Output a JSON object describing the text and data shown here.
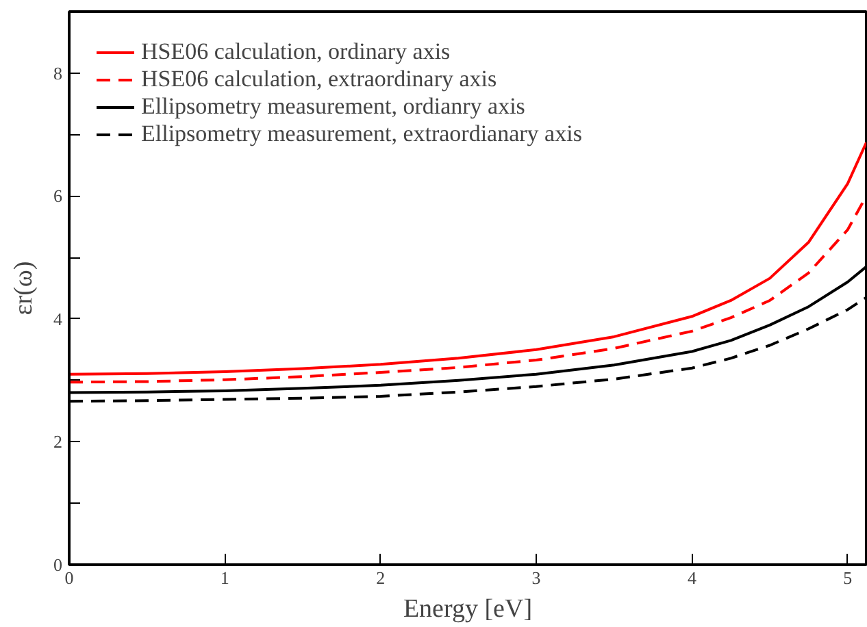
{
  "chart_data": {
    "type": "line",
    "xlabel": "Energy [eV]",
    "ylabel": "εr(ω)",
    "x": [
      0,
      0.5,
      1,
      1.5,
      2,
      2.5,
      3,
      3.5,
      4,
      4.25,
      4.5,
      4.75,
      5,
      5.12
    ],
    "xlim": [
      0,
      5.12
    ],
    "ylim": [
      0,
      9
    ],
    "xticks": [
      0,
      1,
      2,
      3,
      4,
      5
    ],
    "yticks": [
      0,
      {
        "value": 1,
        "label": null
      },
      2,
      {
        "value": 3,
        "label": null
      },
      4,
      {
        "value": 5,
        "label": null
      },
      6,
      {
        "value": 7,
        "label": null
      },
      8
    ],
    "grid": false,
    "legend": "top left",
    "marker": "none",
    "series": [
      {
        "name": "HSE06 calculation, ordinary axis",
        "color": "#ff0000",
        "line_style": "solid",
        "values": [
          3.1,
          3.11,
          3.14,
          3.19,
          3.26,
          3.36,
          3.5,
          3.71,
          4.04,
          4.3,
          4.66,
          5.25,
          6.2,
          6.87
        ]
      },
      {
        "name": "HSE06 calculation, extraordinary axis",
        "color": "#ff0000",
        "line_style": "dashed",
        "values": [
          2.97,
          2.98,
          3.01,
          3.06,
          3.13,
          3.21,
          3.33,
          3.52,
          3.8,
          4.02,
          4.3,
          4.75,
          5.45,
          6.0
        ]
      },
      {
        "name": "Ellipsometry measurement, ordianry axis",
        "color": "#000000",
        "line_style": "solid",
        "values": [
          2.8,
          2.81,
          2.83,
          2.87,
          2.92,
          3.0,
          3.1,
          3.25,
          3.47,
          3.65,
          3.9,
          4.2,
          4.6,
          4.85
        ]
      },
      {
        "name": "Ellipsometry measurement, extraordianary axis",
        "color": "#000000",
        "line_style": "dashed",
        "values": [
          2.66,
          2.67,
          2.69,
          2.71,
          2.74,
          2.81,
          2.9,
          3.02,
          3.2,
          3.36,
          3.57,
          3.84,
          4.15,
          4.35
        ]
      }
    ]
  }
}
